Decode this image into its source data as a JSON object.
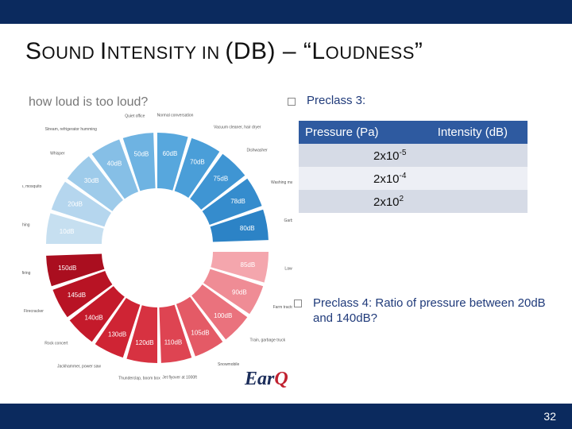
{
  "slide": {
    "title_parts": [
      {
        "text": "S",
        "big": true
      },
      {
        "text": "OUND ",
        "big": false
      },
      {
        "text": "I",
        "big": true
      },
      {
        "text": "NTENSITY IN ",
        "big": false
      },
      {
        "text": "(D",
        "big": true
      },
      {
        "text": "B",
        "big": true
      },
      {
        "text": ") – “L",
        "big": true
      },
      {
        "text": "OUDNESS",
        "big": false
      },
      {
        "text": "”",
        "big": true
      }
    ],
    "page_number": "32"
  },
  "infographic": {
    "heading": "how loud is too loud?",
    "logo_main": "Ear",
    "logo_accent": "Q",
    "quiet_segments": [
      {
        "level": "10dB",
        "label": "Normal breathing",
        "color": "#c6dff0"
      },
      {
        "level": "20dB",
        "label": "Rustling leaves, mosquito",
        "color": "#b5d6ee"
      },
      {
        "level": "30dB",
        "label": "Whisper",
        "color": "#9ecbea"
      },
      {
        "level": "40dB",
        "label": "Stream, refrigerator humming",
        "color": "#86bfe6"
      },
      {
        "level": "50dB",
        "label": "Quiet office",
        "color": "#6eb3e2"
      },
      {
        "level": "60dB",
        "label": "Normal conversation",
        "color": "#57a7dd"
      },
      {
        "level": "70dB",
        "label": "Vacuum cleaner, hair dryer",
        "color": "#4a9ed8"
      },
      {
        "level": "75dB",
        "label": "Dishwasher",
        "color": "#3f95d3"
      },
      {
        "level": "78dB",
        "label": "Washing machine",
        "color": "#358ccd"
      },
      {
        "level": "80dB",
        "label": "Garbage disposal, city traffic noise",
        "color": "#2c83c6"
      }
    ],
    "loud_segments": [
      {
        "level": "85dB",
        "label": "Lawnmower",
        "color": "#f4a6ad"
      },
      {
        "level": "90dB",
        "label": "Farm tractor",
        "color": "#ef8c95"
      },
      {
        "level": "100dB",
        "label": "Train, garbage truck",
        "color": "#ea727d"
      },
      {
        "level": "105dB",
        "label": "Snowmobile",
        "color": "#e45a66"
      },
      {
        "level": "110dB",
        "label": "Jet flyover at 1000ft",
        "color": "#de4452"
      },
      {
        "level": "120dB",
        "label": "Thunderclap, boom box",
        "color": "#d73241"
      },
      {
        "level": "130dB",
        "label": "Jackhammer, power saw",
        "color": "#cf2434"
      },
      {
        "level": "140dB",
        "label": "Rock concert",
        "color": "#c41a2b"
      },
      {
        "level": "145dB",
        "label": "Firecracker",
        "color": "#b81324"
      },
      {
        "level": "150dB",
        "label": "Jet takeoff, shotgun firing",
        "color": "#aa0e1f"
      }
    ]
  },
  "preclass3": {
    "label": "Preclass 3:",
    "table": {
      "headers": [
        "Pressure (Pa)",
        "Intensity (dB)"
      ],
      "rows": [
        {
          "base": "2x10",
          "exp": "-5"
        },
        {
          "base": "2x10",
          "exp": "-4"
        },
        {
          "base": "2x10",
          "exp": "2"
        }
      ]
    }
  },
  "preclass4": {
    "text": "Preclass 4: Ratio of pressure between 20dB and 140dB?"
  },
  "colors": {
    "bar": "#0b2a5e",
    "text_blue": "#1f3a7a",
    "table_header": "#2e5aa0"
  }
}
